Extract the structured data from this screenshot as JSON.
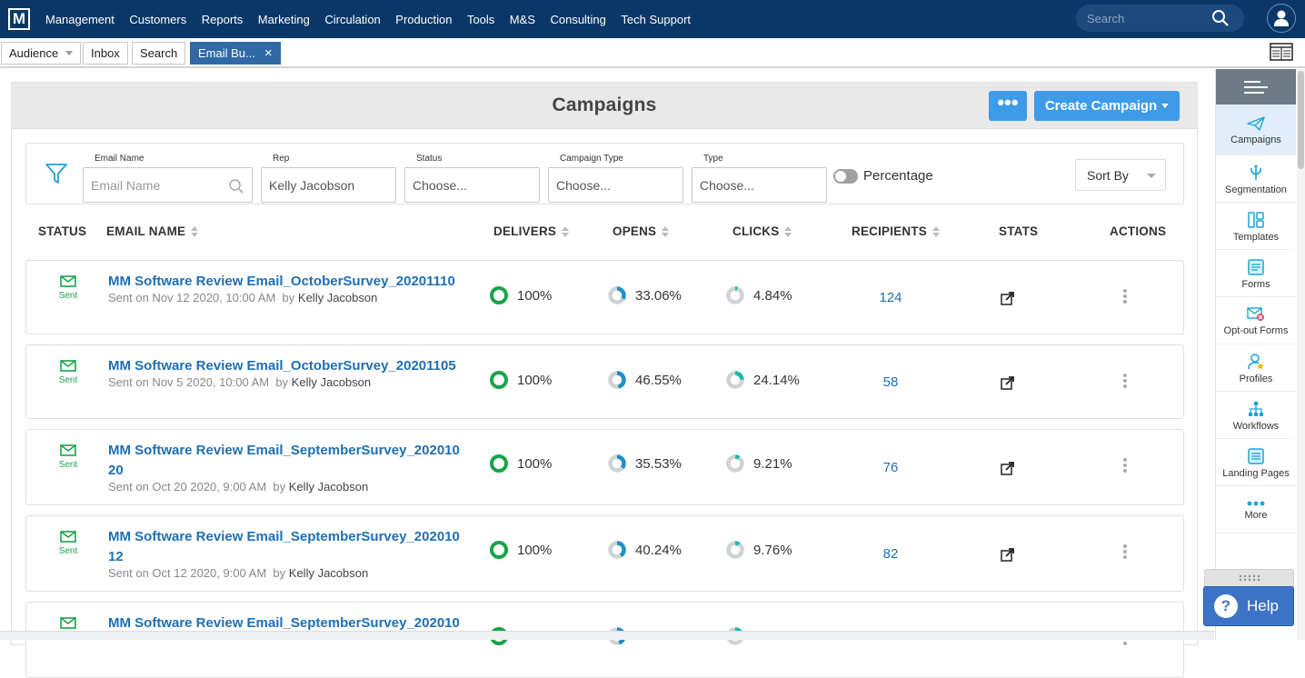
{
  "topnav": {
    "logo": "M",
    "items": [
      "Management",
      "Customers",
      "Reports",
      "Marketing",
      "Circulation",
      "Production",
      "Tools",
      "M&S",
      "Consulting",
      "Tech Support"
    ],
    "search_placeholder": "Search"
  },
  "tabs": {
    "audience": "Audience",
    "inbox": "Inbox",
    "search": "Search",
    "active": "Email Bu..."
  },
  "page": {
    "title": "Campaigns",
    "more_label": "•••",
    "create_label": "Create Campaign"
  },
  "filters": {
    "email_name_label": "Email Name",
    "email_name_placeholder": "Email Name",
    "rep_label": "Rep",
    "rep_value": "Kelly Jacobson",
    "status_label": "Status",
    "status_value": "Choose...",
    "campaign_type_label": "Campaign Type",
    "campaign_type_value": "Choose...",
    "type_label": "Type",
    "type_value": "Choose...",
    "percentage_label": "Percentage",
    "percentage_on": false,
    "sort_label": "Sort By"
  },
  "table": {
    "headers": {
      "status": "STATUS",
      "email_name": "EMAIL NAME",
      "delivers": "DELIVERS",
      "opens": "OPENS",
      "clicks": "CLICKS",
      "recipients": "RECIPIENTS",
      "stats": "STATS",
      "actions": "ACTIONS"
    },
    "rows": [
      {
        "status": "Sent",
        "name_line1": "MM Software Review Email_OctoberSurvey_20201110",
        "name_line2": "",
        "sent": "Sent on Nov 12 2020, 10:00 AM",
        "by_prefix": "by",
        "by": "Kelly Jacobson",
        "delivers": "100%",
        "opens": "33.06%",
        "clicks": "4.84%",
        "recipients": "124",
        "opens_frac": 0.3306,
        "clicks_frac": 0.0484
      },
      {
        "status": "Sent",
        "name_line1": "MM Software Review Email_OctoberSurvey_20201105",
        "name_line2": "",
        "sent": "Sent on Nov 5 2020, 10:00 AM",
        "by_prefix": "by",
        "by": "Kelly Jacobson",
        "delivers": "100%",
        "opens": "46.55%",
        "clicks": "24.14%",
        "recipients": "58",
        "opens_frac": 0.4655,
        "clicks_frac": 0.2414
      },
      {
        "status": "Sent",
        "name_line1": "MM Software Review Email_SeptemberSurvey_202010",
        "name_line2": "20",
        "sent": "Sent on Oct 20 2020, 9:00 AM",
        "by_prefix": "by",
        "by": "Kelly Jacobson",
        "delivers": "100%",
        "opens": "35.53%",
        "clicks": "9.21%",
        "recipients": "76",
        "opens_frac": 0.3553,
        "clicks_frac": 0.0921
      },
      {
        "status": "Sent",
        "name_line1": "MM Software Review Email_SeptemberSurvey_202010",
        "name_line2": "12",
        "sent": "Sent on Oct 12 2020, 9:00 AM",
        "by_prefix": "by",
        "by": "Kelly Jacobson",
        "delivers": "100%",
        "opens": "40.24%",
        "clicks": "9.76%",
        "recipients": "82",
        "opens_frac": 0.4024,
        "clicks_frac": 0.0976
      },
      {
        "status": "",
        "name_line1": "MM Software Review Email_SeptemberSurvey_202010",
        "name_line2": "",
        "sent": "",
        "by_prefix": "",
        "by": "",
        "delivers": "",
        "opens": "",
        "clicks": "",
        "recipients": "",
        "opens_frac": 0.45,
        "clicks_frac": 0.15
      }
    ]
  },
  "sidebar": {
    "items": [
      {
        "label": "Campaigns",
        "icon": "paper-plane-icon",
        "active": true
      },
      {
        "label": "Segmentation",
        "icon": "segmentation-icon"
      },
      {
        "label": "Templates",
        "icon": "templates-icon"
      },
      {
        "label": "Forms",
        "icon": "forms-icon"
      },
      {
        "label": "Opt-out Forms",
        "icon": "opt-out-icon"
      },
      {
        "label": "Profiles",
        "icon": "profiles-icon"
      },
      {
        "label": "Workflows",
        "icon": "workflows-icon"
      },
      {
        "label": "Landing Pages",
        "icon": "landing-pages-icon"
      },
      {
        "label": "More",
        "icon": "more-dots-icon"
      }
    ]
  },
  "help": {
    "label": "Help",
    "glyph": "?"
  },
  "colors": {
    "nav_bg": "#0b3768",
    "accent": "#3d9be9",
    "link": "#1f6fb2",
    "sent_green": "#1aa34a",
    "sidebar_icon": "#1ca3d8"
  }
}
